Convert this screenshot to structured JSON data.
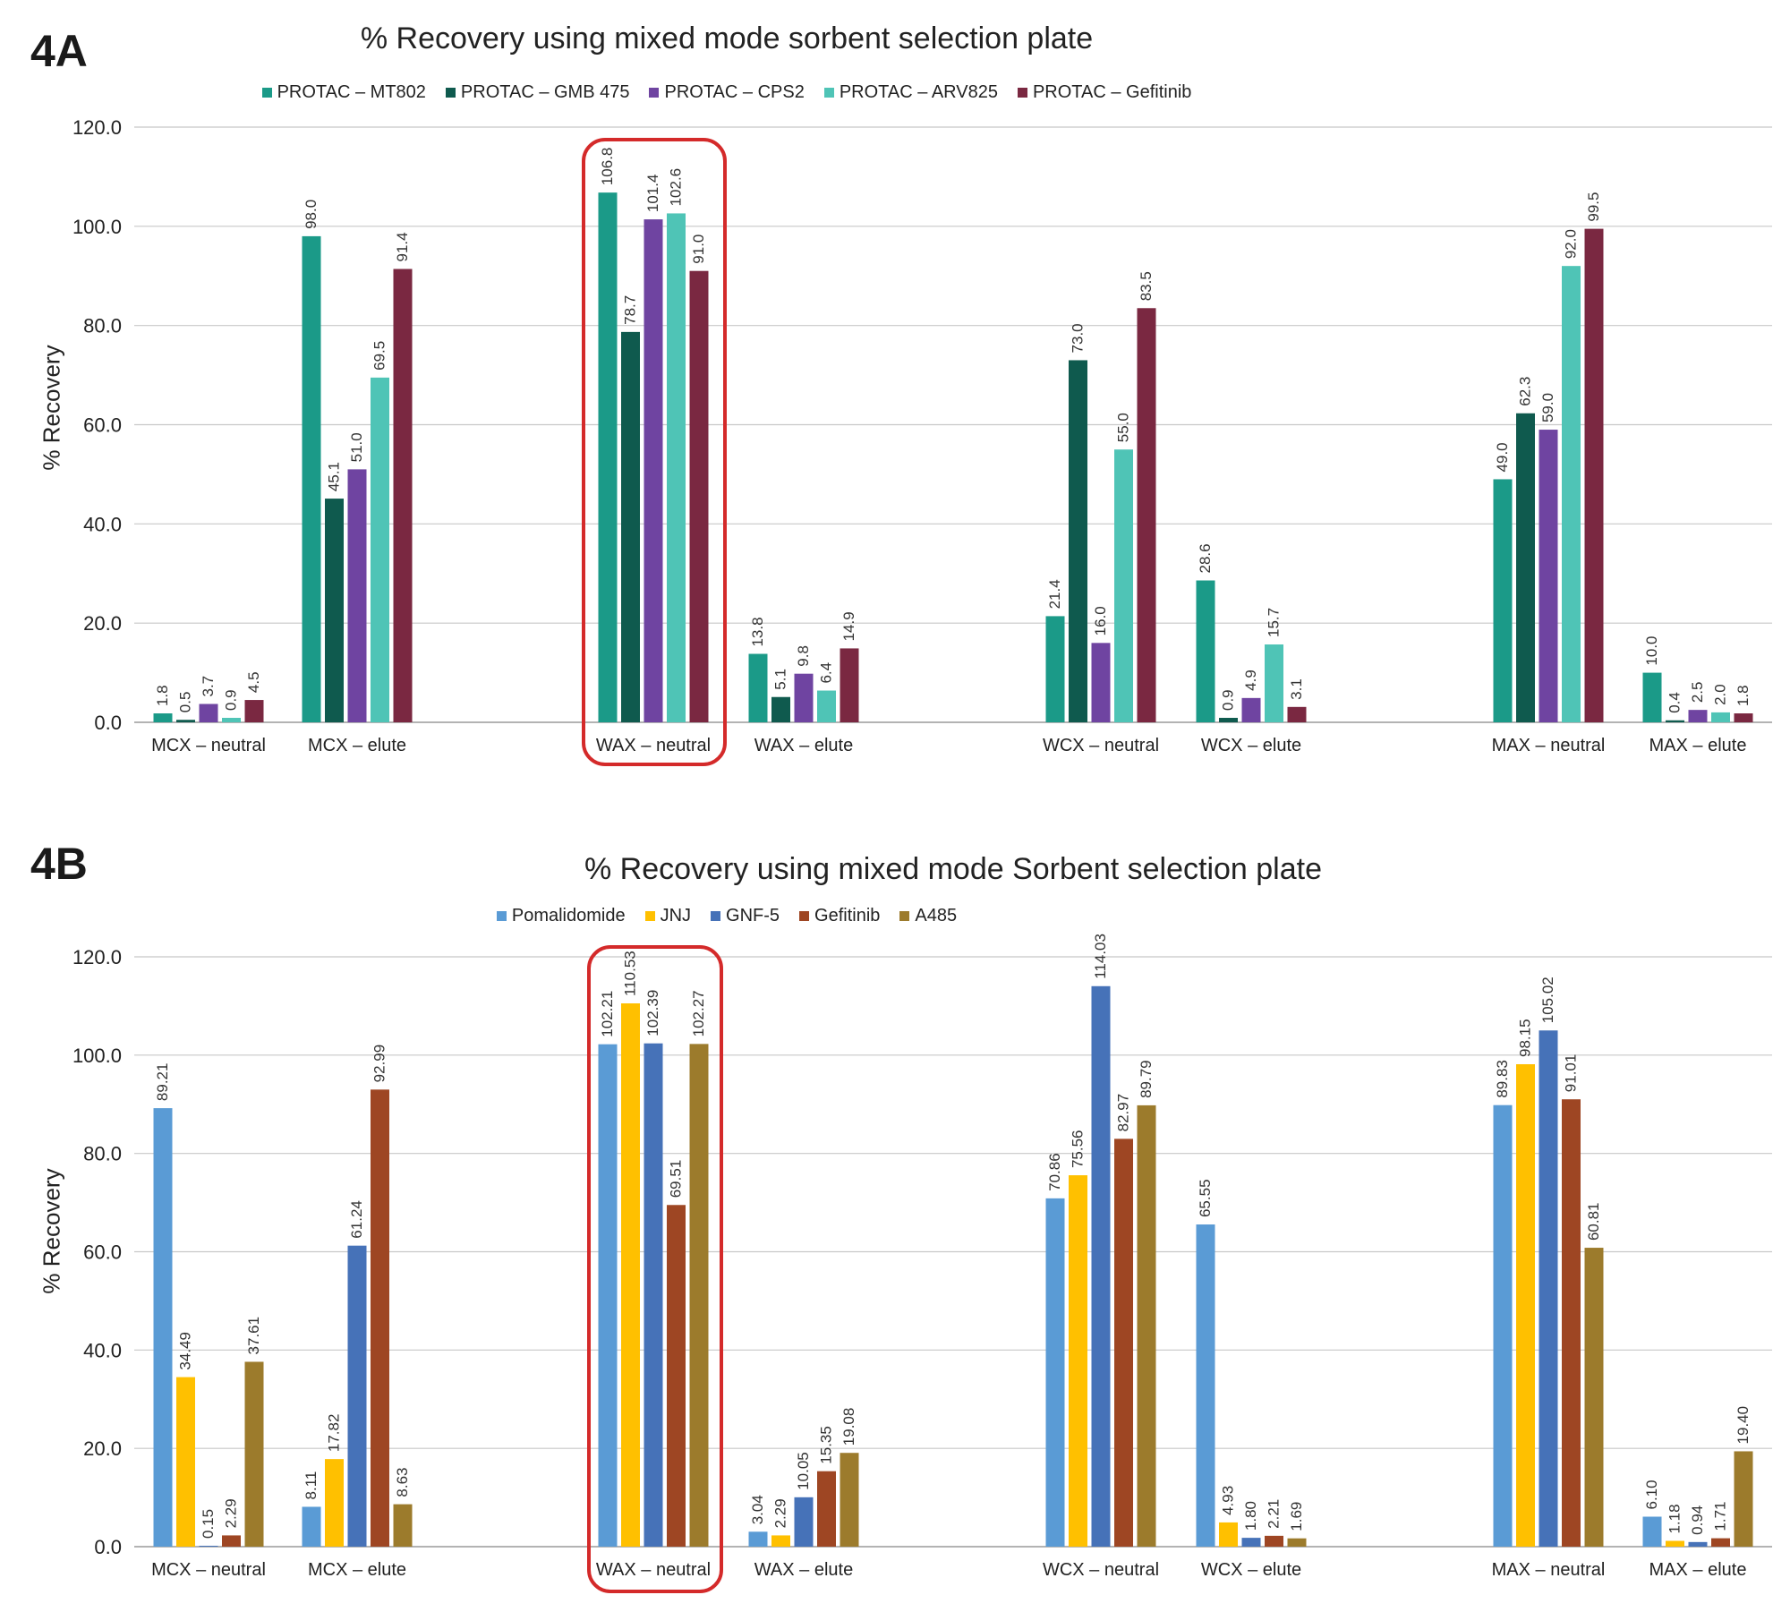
{
  "figure": {
    "panels": [
      {
        "label": "4A"
      },
      {
        "label": "4B"
      }
    ]
  },
  "colors": {
    "A": [
      "#1b9a88",
      "#0f5a4e",
      "#6f44a1",
      "#4fc4b6",
      "#7a2841"
    ],
    "B": [
      "#5a9bd5",
      "#ffc000",
      "#4672b8",
      "#9e4623",
      "#9c7b2c"
    ],
    "highlight": "#d42a2a",
    "grid": "#c8c8c8"
  },
  "chart_data": [
    {
      "type": "bar",
      "title": "% Recovery using mixed mode sorbent selection plate",
      "xlabel": "",
      "ylabel": "% Recovery",
      "ylim": [
        0,
        120
      ],
      "yticks": [
        "0.0",
        "20.0",
        "40.0",
        "60.0",
        "80.0",
        "100.0",
        "120.0"
      ],
      "grid": true,
      "legend_position": "top",
      "highlighted_category": "WAX – neutral",
      "categories": [
        "MCX – neutral",
        "MCX – elute",
        "WAX – neutral",
        "WAX – elute",
        "WCX – neutral",
        "WCX – elute",
        "MAX – neutral",
        "MAX – elute"
      ],
      "series": [
        {
          "name": "PROTAC – MT802",
          "values": [
            1.8,
            98.0,
            106.8,
            13.8,
            21.4,
            28.6,
            49.0,
            10.0
          ],
          "labels": [
            "1.8",
            "98.0",
            "106.8",
            "13.8",
            "21.4",
            "28.6",
            "49.0",
            "10.0"
          ]
        },
        {
          "name": "PROTAC – GMB 475",
          "values": [
            0.5,
            45.1,
            78.7,
            5.1,
            73.0,
            0.9,
            62.3,
            0.4
          ],
          "labels": [
            "0.5",
            "45.1",
            "78.7",
            "5.1",
            "73.0",
            "0.9",
            "62.3",
            "0.4"
          ]
        },
        {
          "name": "PROTAC – CPS2",
          "values": [
            3.7,
            51.0,
            101.4,
            9.8,
            16.0,
            4.9,
            59.0,
            2.5
          ],
          "labels": [
            "3.7",
            "51.0",
            "101.4",
            "9.8",
            "16.0",
            "4.9",
            "59.0",
            "2.5"
          ]
        },
        {
          "name": "PROTAC – ARV825",
          "values": [
            0.9,
            69.5,
            102.6,
            6.4,
            55.0,
            15.7,
            92.0,
            2.0
          ],
          "labels": [
            "0.9",
            "69.5",
            "102.6",
            "6.4",
            "55.0",
            "15.7",
            "92.0",
            "2.0"
          ]
        },
        {
          "name": "PROTAC – Gefitinib",
          "values": [
            4.5,
            91.4,
            91.0,
            14.9,
            83.5,
            3.1,
            99.5,
            1.8
          ],
          "labels": [
            "4.5",
            "91.4",
            "91.0",
            "14.9",
            "83.5",
            "3.1",
            "99.5",
            "1.8"
          ]
        }
      ]
    },
    {
      "type": "bar",
      "title": "% Recovery using mixed mode Sorbent selection plate",
      "xlabel": "",
      "ylabel": "% Recovery",
      "ylim": [
        0,
        120
      ],
      "yticks": [
        "0.0",
        "20.0",
        "40.0",
        "60.0",
        "80.0",
        "100.0",
        "120.0"
      ],
      "grid": true,
      "legend_position": "top",
      "highlighted_category": "WAX – neutral",
      "categories": [
        "MCX – neutral",
        "MCX – elute",
        "WAX – neutral",
        "WAX – elute",
        "WCX – neutral",
        "WCX – elute",
        "MAX – neutral",
        "MAX – elute"
      ],
      "series": [
        {
          "name": "Pomalidomide",
          "values": [
            89.21,
            8.11,
            102.21,
            3.04,
            70.86,
            65.55,
            89.83,
            6.1
          ],
          "labels": [
            "89.21",
            "8.11",
            "102.21",
            "3.04",
            "70.86",
            "65.55",
            "89.83",
            "6.10"
          ]
        },
        {
          "name": "JNJ",
          "values": [
            34.49,
            17.82,
            110.53,
            2.29,
            75.56,
            4.93,
            98.15,
            1.18
          ],
          "labels": [
            "34.49",
            "17.82",
            "110.53",
            "2.29",
            "75.56",
            "4.93",
            "98.15",
            "1.18"
          ]
        },
        {
          "name": "GNF-5",
          "values": [
            0.15,
            61.24,
            102.39,
            10.05,
            114.03,
            1.8,
            105.02,
            0.94
          ],
          "labels": [
            "0.15",
            "61.24",
            "102.39",
            "10.05",
            "114.03",
            "1.80",
            "105.02",
            "0.94"
          ]
        },
        {
          "name": "Gefitinib",
          "values": [
            2.29,
            92.99,
            69.51,
            15.35,
            82.97,
            2.21,
            91.01,
            1.71
          ],
          "labels": [
            "2.29",
            "92.99",
            "69.51",
            "15.35",
            "82.97",
            "2.21",
            "91.01",
            "1.71"
          ]
        },
        {
          "name": "A485",
          "values": [
            37.61,
            8.63,
            102.27,
            19.08,
            89.79,
            1.69,
            60.81,
            19.4
          ],
          "labels": [
            "37.61",
            "8.63",
            "102.27",
            "19.08",
            "89.79",
            "1.69",
            "60.81",
            "19.40"
          ]
        }
      ]
    }
  ]
}
